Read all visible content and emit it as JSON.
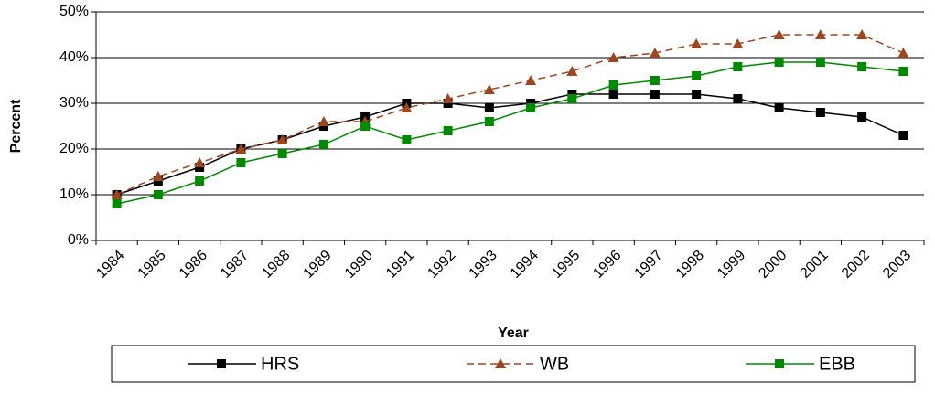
{
  "chart_data": {
    "type": "line",
    "x_label": "Year",
    "y_label": "Percent",
    "categories": [
      "1984",
      "1985",
      "1986",
      "1987",
      "1988",
      "1989",
      "1990",
      "1991",
      "1992",
      "1993",
      "1994",
      "1995",
      "1996",
      "1997",
      "1998",
      "1999",
      "2000",
      "2001",
      "2002",
      "2003"
    ],
    "series": [
      {
        "name": "HRS",
        "color": "#000000",
        "dashed": false,
        "marker": "square",
        "values": [
          10,
          13,
          16,
          20,
          22,
          25,
          27,
          30,
          30,
          29,
          30,
          32,
          32,
          32,
          32,
          31,
          29,
          28,
          27,
          23
        ]
      },
      {
        "name": "WB",
        "color": "#a0461e",
        "dashed": true,
        "marker": "triangle",
        "values": [
          10,
          14,
          17,
          20,
          22,
          26,
          26,
          29,
          31,
          33,
          35,
          37,
          40,
          41,
          43,
          43,
          45,
          45,
          45,
          41
        ]
      },
      {
        "name": "EBB",
        "color": "#008a00",
        "dashed": false,
        "marker": "square",
        "values": [
          8,
          10,
          13,
          17,
          19,
          21,
          25,
          22,
          24,
          26,
          29,
          31,
          34,
          35,
          36,
          38,
          39,
          39,
          38,
          37
        ]
      }
    ],
    "ylim": [
      0,
      50
    ],
    "yticks": [
      {
        "value": 0,
        "label": "0%"
      },
      {
        "value": 10,
        "label": "10%"
      },
      {
        "value": 20,
        "label": "20%"
      },
      {
        "value": 30,
        "label": "30%"
      },
      {
        "value": 40,
        "label": "40%"
      },
      {
        "value": 50,
        "label": "50%"
      }
    ],
    "grid": true,
    "legend": "bottom"
  }
}
